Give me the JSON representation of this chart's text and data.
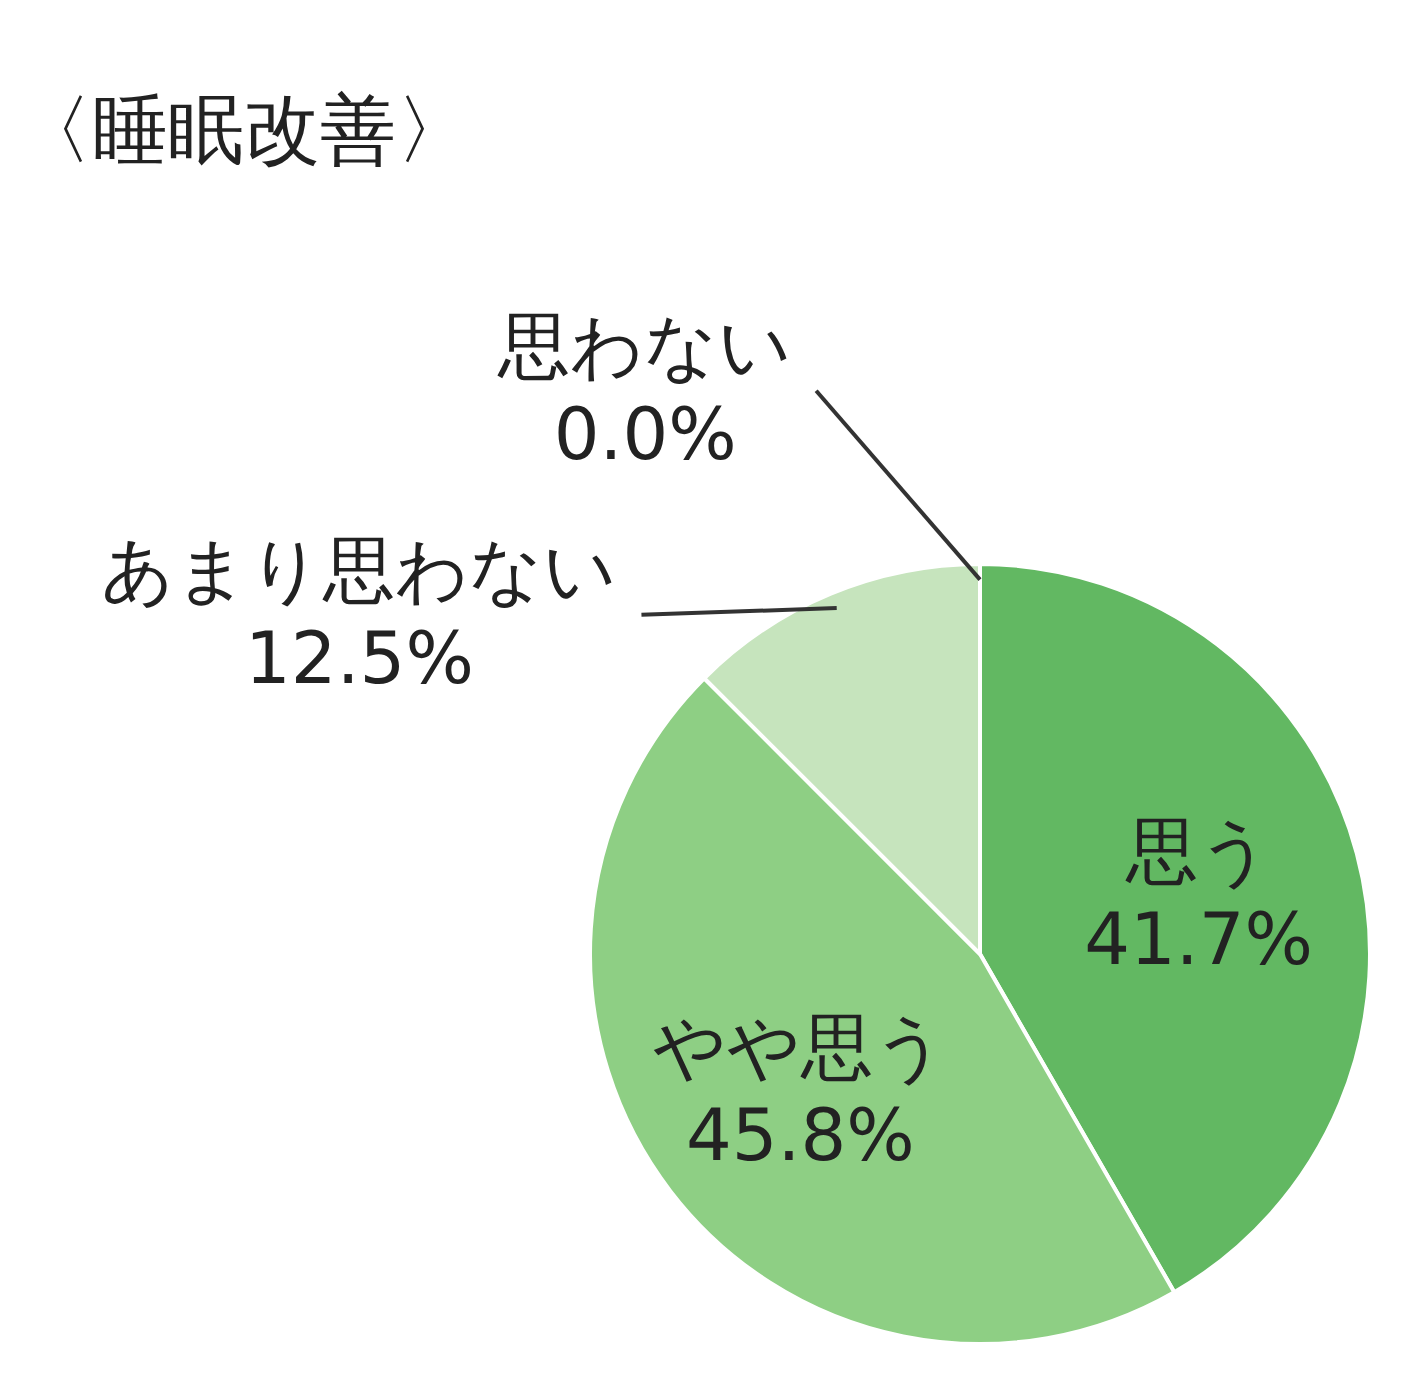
{
  "chart_data": {
    "type": "pie",
    "title": "〈睡眠改善〉",
    "categories": [
      "思う",
      "やや思う",
      "あまり思わない",
      "思わない"
    ],
    "values": [
      41.7,
      45.8,
      12.5,
      0.0
    ],
    "value_labels": [
      "41.7%",
      "45.8%",
      "12.5%",
      "0.0%"
    ],
    "colors": [
      "#62b862",
      "#8ecf84",
      "#c6e4bd",
      "#e4f2e0"
    ]
  }
}
